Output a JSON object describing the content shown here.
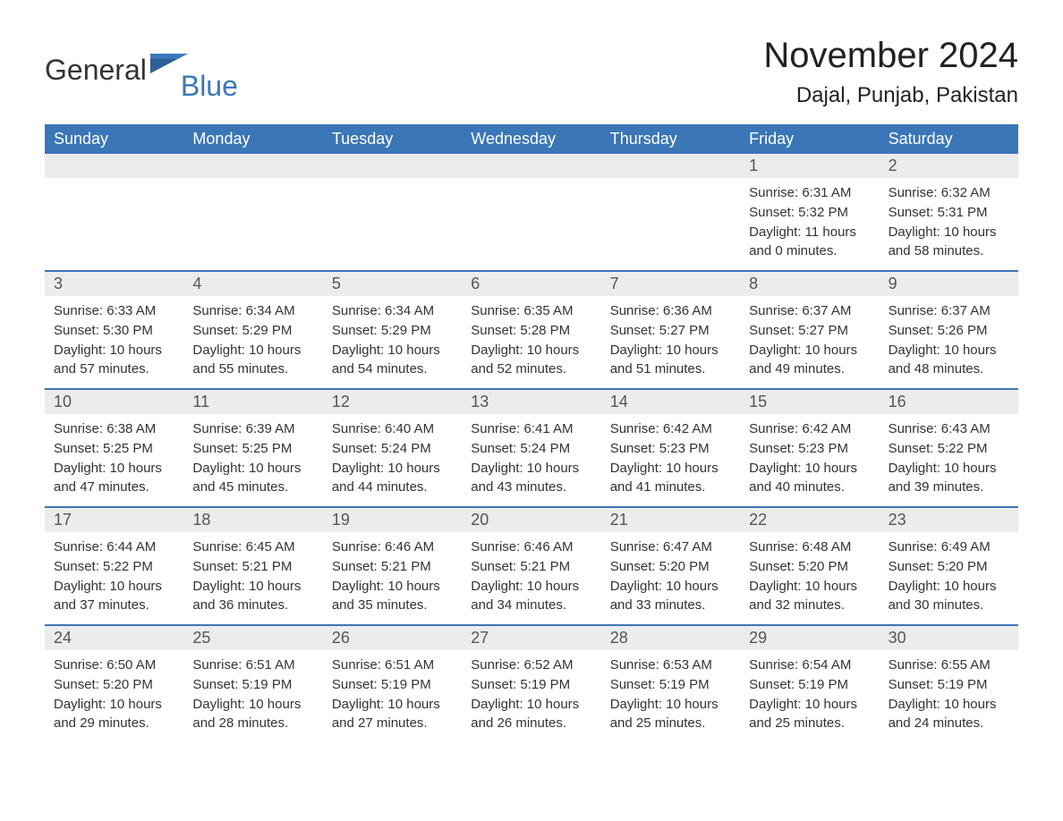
{
  "logo": {
    "text1": "General",
    "text2": "Blue",
    "flag_color": "#3a76b8"
  },
  "title": {
    "month_year": "November 2024",
    "location": "Dajal, Punjab, Pakistan"
  },
  "colors": {
    "header_bg": "#3a76b8",
    "band_bg": "#ececec",
    "text": "#333333",
    "logo_blue": "#3a76b8"
  },
  "weekdays": [
    "Sunday",
    "Monday",
    "Tuesday",
    "Wednesday",
    "Thursday",
    "Friday",
    "Saturday"
  ],
  "weeks": [
    [
      {
        "blank": true
      },
      {
        "blank": true
      },
      {
        "blank": true
      },
      {
        "blank": true
      },
      {
        "blank": true
      },
      {
        "day": "1",
        "sunrise": "Sunrise: 6:31 AM",
        "sunset": "Sunset: 5:32 PM",
        "daylight1": "Daylight: 11 hours",
        "daylight2": "and 0 minutes."
      },
      {
        "day": "2",
        "sunrise": "Sunrise: 6:32 AM",
        "sunset": "Sunset: 5:31 PM",
        "daylight1": "Daylight: 10 hours",
        "daylight2": "and 58 minutes."
      }
    ],
    [
      {
        "day": "3",
        "sunrise": "Sunrise: 6:33 AM",
        "sunset": "Sunset: 5:30 PM",
        "daylight1": "Daylight: 10 hours",
        "daylight2": "and 57 minutes."
      },
      {
        "day": "4",
        "sunrise": "Sunrise: 6:34 AM",
        "sunset": "Sunset: 5:29 PM",
        "daylight1": "Daylight: 10 hours",
        "daylight2": "and 55 minutes."
      },
      {
        "day": "5",
        "sunrise": "Sunrise: 6:34 AM",
        "sunset": "Sunset: 5:29 PM",
        "daylight1": "Daylight: 10 hours",
        "daylight2": "and 54 minutes."
      },
      {
        "day": "6",
        "sunrise": "Sunrise: 6:35 AM",
        "sunset": "Sunset: 5:28 PM",
        "daylight1": "Daylight: 10 hours",
        "daylight2": "and 52 minutes."
      },
      {
        "day": "7",
        "sunrise": "Sunrise: 6:36 AM",
        "sunset": "Sunset: 5:27 PM",
        "daylight1": "Daylight: 10 hours",
        "daylight2": "and 51 minutes."
      },
      {
        "day": "8",
        "sunrise": "Sunrise: 6:37 AM",
        "sunset": "Sunset: 5:27 PM",
        "daylight1": "Daylight: 10 hours",
        "daylight2": "and 49 minutes."
      },
      {
        "day": "9",
        "sunrise": "Sunrise: 6:37 AM",
        "sunset": "Sunset: 5:26 PM",
        "daylight1": "Daylight: 10 hours",
        "daylight2": "and 48 minutes."
      }
    ],
    [
      {
        "day": "10",
        "sunrise": "Sunrise: 6:38 AM",
        "sunset": "Sunset: 5:25 PM",
        "daylight1": "Daylight: 10 hours",
        "daylight2": "and 47 minutes."
      },
      {
        "day": "11",
        "sunrise": "Sunrise: 6:39 AM",
        "sunset": "Sunset: 5:25 PM",
        "daylight1": "Daylight: 10 hours",
        "daylight2": "and 45 minutes."
      },
      {
        "day": "12",
        "sunrise": "Sunrise: 6:40 AM",
        "sunset": "Sunset: 5:24 PM",
        "daylight1": "Daylight: 10 hours",
        "daylight2": "and 44 minutes."
      },
      {
        "day": "13",
        "sunrise": "Sunrise: 6:41 AM",
        "sunset": "Sunset: 5:24 PM",
        "daylight1": "Daylight: 10 hours",
        "daylight2": "and 43 minutes."
      },
      {
        "day": "14",
        "sunrise": "Sunrise: 6:42 AM",
        "sunset": "Sunset: 5:23 PM",
        "daylight1": "Daylight: 10 hours",
        "daylight2": "and 41 minutes."
      },
      {
        "day": "15",
        "sunrise": "Sunrise: 6:42 AM",
        "sunset": "Sunset: 5:23 PM",
        "daylight1": "Daylight: 10 hours",
        "daylight2": "and 40 minutes."
      },
      {
        "day": "16",
        "sunrise": "Sunrise: 6:43 AM",
        "sunset": "Sunset: 5:22 PM",
        "daylight1": "Daylight: 10 hours",
        "daylight2": "and 39 minutes."
      }
    ],
    [
      {
        "day": "17",
        "sunrise": "Sunrise: 6:44 AM",
        "sunset": "Sunset: 5:22 PM",
        "daylight1": "Daylight: 10 hours",
        "daylight2": "and 37 minutes."
      },
      {
        "day": "18",
        "sunrise": "Sunrise: 6:45 AM",
        "sunset": "Sunset: 5:21 PM",
        "daylight1": "Daylight: 10 hours",
        "daylight2": "and 36 minutes."
      },
      {
        "day": "19",
        "sunrise": "Sunrise: 6:46 AM",
        "sunset": "Sunset: 5:21 PM",
        "daylight1": "Daylight: 10 hours",
        "daylight2": "and 35 minutes."
      },
      {
        "day": "20",
        "sunrise": "Sunrise: 6:46 AM",
        "sunset": "Sunset: 5:21 PM",
        "daylight1": "Daylight: 10 hours",
        "daylight2": "and 34 minutes."
      },
      {
        "day": "21",
        "sunrise": "Sunrise: 6:47 AM",
        "sunset": "Sunset: 5:20 PM",
        "daylight1": "Daylight: 10 hours",
        "daylight2": "and 33 minutes."
      },
      {
        "day": "22",
        "sunrise": "Sunrise: 6:48 AM",
        "sunset": "Sunset: 5:20 PM",
        "daylight1": "Daylight: 10 hours",
        "daylight2": "and 32 minutes."
      },
      {
        "day": "23",
        "sunrise": "Sunrise: 6:49 AM",
        "sunset": "Sunset: 5:20 PM",
        "daylight1": "Daylight: 10 hours",
        "daylight2": "and 30 minutes."
      }
    ],
    [
      {
        "day": "24",
        "sunrise": "Sunrise: 6:50 AM",
        "sunset": "Sunset: 5:20 PM",
        "daylight1": "Daylight: 10 hours",
        "daylight2": "and 29 minutes."
      },
      {
        "day": "25",
        "sunrise": "Sunrise: 6:51 AM",
        "sunset": "Sunset: 5:19 PM",
        "daylight1": "Daylight: 10 hours",
        "daylight2": "and 28 minutes."
      },
      {
        "day": "26",
        "sunrise": "Sunrise: 6:51 AM",
        "sunset": "Sunset: 5:19 PM",
        "daylight1": "Daylight: 10 hours",
        "daylight2": "and 27 minutes."
      },
      {
        "day": "27",
        "sunrise": "Sunrise: 6:52 AM",
        "sunset": "Sunset: 5:19 PM",
        "daylight1": "Daylight: 10 hours",
        "daylight2": "and 26 minutes."
      },
      {
        "day": "28",
        "sunrise": "Sunrise: 6:53 AM",
        "sunset": "Sunset: 5:19 PM",
        "daylight1": "Daylight: 10 hours",
        "daylight2": "and 25 minutes."
      },
      {
        "day": "29",
        "sunrise": "Sunrise: 6:54 AM",
        "sunset": "Sunset: 5:19 PM",
        "daylight1": "Daylight: 10 hours",
        "daylight2": "and 25 minutes."
      },
      {
        "day": "30",
        "sunrise": "Sunrise: 6:55 AM",
        "sunset": "Sunset: 5:19 PM",
        "daylight1": "Daylight: 10 hours",
        "daylight2": "and 24 minutes."
      }
    ]
  ]
}
